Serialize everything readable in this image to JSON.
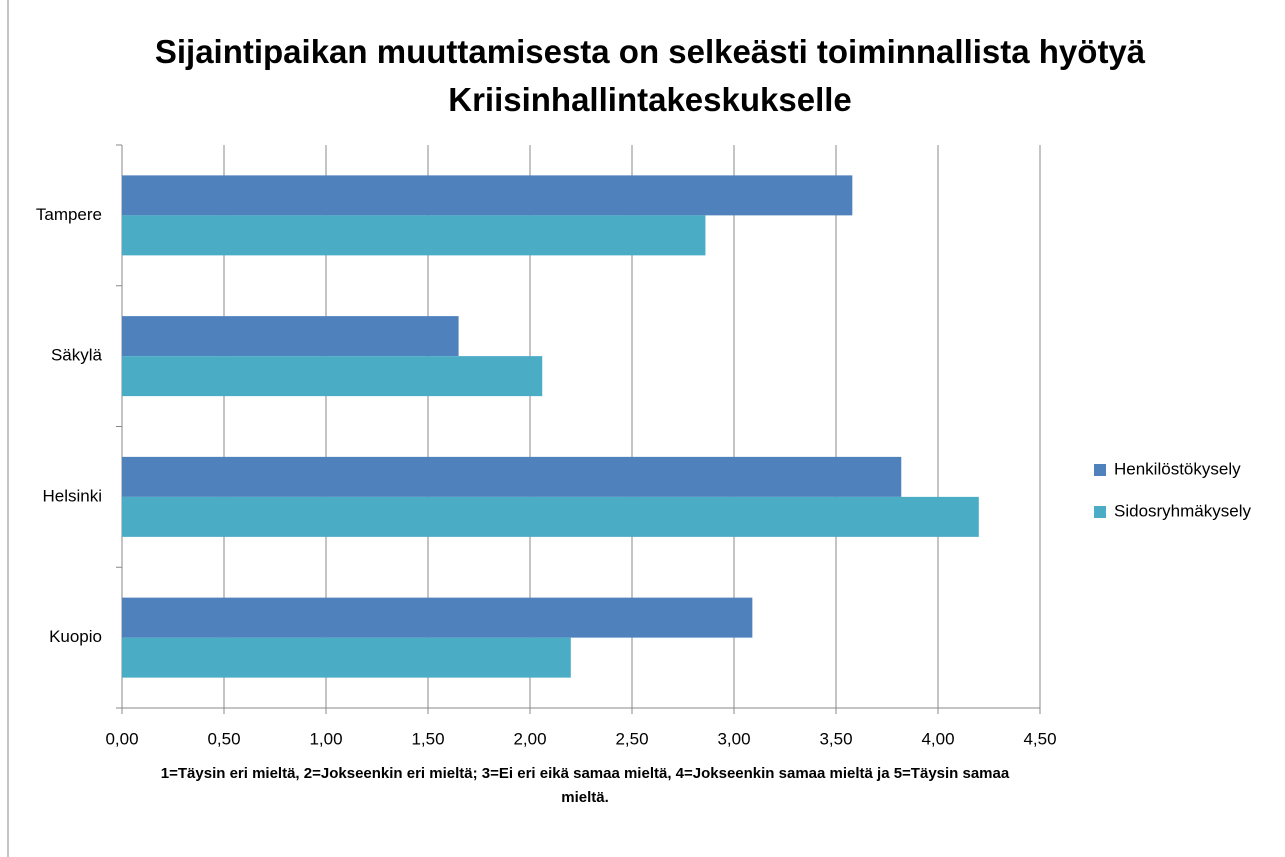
{
  "chart_data": {
    "type": "hbar",
    "title": "Sijaintipaikan muuttamisesta on selkeästi toiminnallista hyötyä Kriisinhallintakeskukselle",
    "x_label": "1=Täysin eri mieltä, 2=Jokseenkin eri mieltä; 3=Ei eri eikä samaa mieltä, 4=Jokseenkin samaa mieltä ja 5=Täysin samaa mieltä.",
    "categories": [
      "Tampere",
      "Säkylä",
      "Helsinki",
      "Kuopio"
    ],
    "series": [
      {
        "name": "Henkilöstökysely",
        "color": "#4f81bd",
        "values": [
          3.58,
          1.65,
          3.82,
          3.09
        ]
      },
      {
        "name": "Sidosryhmäkysely",
        "color": "#4bacc6",
        "values": [
          2.86,
          2.06,
          4.2,
          2.2
        ]
      }
    ],
    "xlim": [
      0,
      4.5
    ],
    "xticks": [
      {
        "value": 0,
        "label": "0,00"
      },
      {
        "value": 0.5,
        "label": "0,50"
      },
      {
        "value": 1,
        "label": "1,00"
      },
      {
        "value": 1.5,
        "label": "1,50"
      },
      {
        "value": 2,
        "label": "2,00"
      },
      {
        "value": 2.5,
        "label": "2,50"
      },
      {
        "value": 3,
        "label": "3,00"
      },
      {
        "value": 3.5,
        "label": "3,50"
      },
      {
        "value": 4,
        "label": "4,00"
      },
      {
        "value": 4.5,
        "label": "4,50"
      }
    ],
    "grid": true,
    "legend": "right"
  }
}
